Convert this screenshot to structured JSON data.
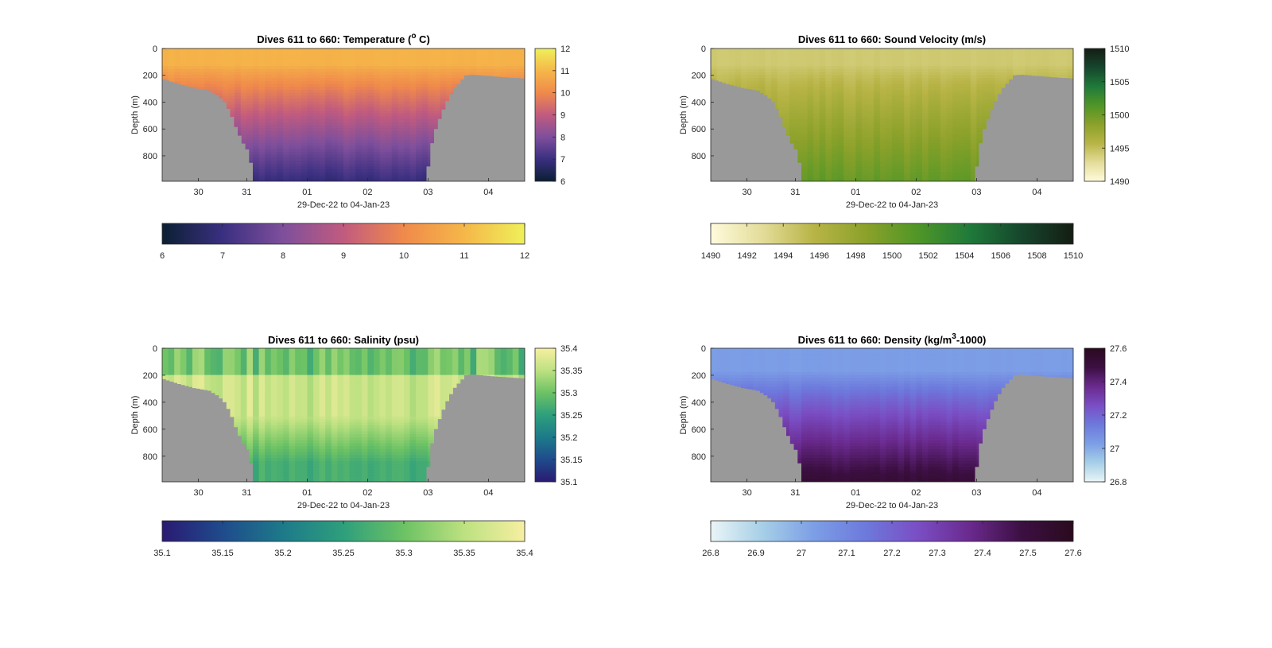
{
  "chart_data": [
    {
      "type": "heatmap",
      "title": "Dives 611 to 660: Temperature (",
      "title_super": "o",
      "title_tail": " C)",
      "xlabel": "29-Dec-22 to 04-Jan-23",
      "ylabel": "Depth (m)",
      "x_ticks": [
        "30",
        "31",
        "01",
        "02",
        "03",
        "04"
      ],
      "y_ticks": [
        "0",
        "200",
        "400",
        "600",
        "800"
      ],
      "ylim": [
        0,
        990
      ],
      "xlim_days": [
        0.0,
        6.0
      ],
      "side_colorbar_ticks": [
        "6",
        "7",
        "8",
        "9",
        "10",
        "11",
        "12"
      ],
      "bottom_colorbar_ticks": [
        "6",
        "7",
        "8",
        "9",
        "10",
        "11",
        "12"
      ],
      "clim": [
        6,
        12
      ],
      "colormap": [
        "#0b1f33",
        "#3a2f80",
        "#7e4f9c",
        "#c15b7f",
        "#f08a4b",
        "#f5b749",
        "#eff05a"
      ],
      "surface_value": 10.9,
      "deep_value": 6.9,
      "surface_layer_depth": 120,
      "bathymetry_color": "#999999"
    },
    {
      "type": "heatmap",
      "title": "Dives 611 to 660: Sound Velocity (m/s)",
      "xlabel": "29-Dec-22 to 04-Jan-23",
      "ylabel": "Depth (m)",
      "x_ticks": [
        "30",
        "31",
        "01",
        "02",
        "03",
        "04"
      ],
      "y_ticks": [
        "0",
        "200",
        "400",
        "600",
        "800"
      ],
      "ylim": [
        0,
        990
      ],
      "xlim_days": [
        0.0,
        6.0
      ],
      "side_colorbar_ticks": [
        "1490",
        "1495",
        "1500",
        "1505",
        "1510"
      ],
      "bottom_colorbar_ticks": [
        "1490",
        "1492",
        "1494",
        "1496",
        "1498",
        "1500",
        "1502",
        "1504",
        "1506",
        "1508",
        "1510"
      ],
      "clim": [
        1490,
        1510
      ],
      "colormap": [
        "#fffbdc",
        "#e3dc99",
        "#b8b446",
        "#8ba12a",
        "#4f9627",
        "#1f7a3a",
        "#16462c",
        "#141d13"
      ],
      "surface_value": 1494.2,
      "deep_value": 1500.4,
      "surface_layer_depth": 120,
      "bathymetry_color": "#999999"
    },
    {
      "type": "heatmap",
      "title": "Dives 611 to 660: Salinity (psu)",
      "xlabel": "29-Dec-22 to 04-Jan-23",
      "ylabel": "Depth (m)",
      "x_ticks": [
        "30",
        "31",
        "01",
        "02",
        "03",
        "04"
      ],
      "y_ticks": [
        "0",
        "200",
        "400",
        "600",
        "800"
      ],
      "ylim": [
        0,
        990
      ],
      "xlim_days": [
        0.0,
        6.0
      ],
      "side_colorbar_ticks": [
        "35.1",
        "35.15",
        "35.2",
        "35.25",
        "35.3",
        "35.35",
        "35.4"
      ],
      "bottom_colorbar_ticks": [
        "35.1",
        "35.15",
        "35.2",
        "35.25",
        "35.3",
        "35.35",
        "35.4"
      ],
      "clim": [
        35.1,
        35.4
      ],
      "colormap": [
        "#2a1a72",
        "#1f4b8c",
        "#1d7a8a",
        "#2e9f7c",
        "#6cc264",
        "#bde181",
        "#f7efa1"
      ],
      "surface_value": 35.3,
      "mid_value": 35.36,
      "deep_value": 35.27,
      "bathymetry_color": "#999999"
    },
    {
      "type": "heatmap",
      "title": "Dives 611 to 660: Density (kg/m",
      "title_super": "3",
      "title_tail": "-1000)",
      "xlabel": "29-Dec-22 to 04-Jan-23",
      "ylabel": "Depth (m)",
      "x_ticks": [
        "30",
        "31",
        "01",
        "02",
        "03",
        "04"
      ],
      "y_ticks": [
        "0",
        "200",
        "400",
        "600",
        "800"
      ],
      "ylim": [
        0,
        990
      ],
      "xlim_days": [
        0.0,
        6.0
      ],
      "side_colorbar_ticks": [
        "26.8",
        "27",
        "27.2",
        "27.4",
        "27.6"
      ],
      "bottom_colorbar_ticks": [
        "26.8",
        "26.9",
        "27",
        "27.1",
        "27.2",
        "27.3",
        "27.4",
        "27.5",
        "27.6"
      ],
      "clim": [
        26.8,
        27.6
      ],
      "colormap": [
        "#eaf5f7",
        "#a6cfe7",
        "#7c9ee6",
        "#6d79dc",
        "#7a4ec4",
        "#6a2a8e",
        "#3c0f42",
        "#2a0a1e"
      ],
      "surface_value": 27.03,
      "deep_value": 27.52,
      "surface_layer_depth": 170,
      "bathymetry_color": "#999999"
    }
  ],
  "bathymetry": {
    "sample_days": [
      0.0,
      0.25,
      0.5,
      0.75,
      0.9,
      1.0,
      1.1,
      1.2,
      1.3,
      1.4,
      1.5,
      1.95,
      2.0,
      4.35,
      4.4,
      4.5,
      4.6,
      4.7,
      4.8,
      4.9,
      5.0,
      5.1,
      5.25,
      5.5,
      6.0
    ],
    "depth_m": [
      230,
      265,
      295,
      315,
      355,
      400,
      480,
      600,
      700,
      770,
      990,
      990,
      990,
      990,
      770,
      600,
      480,
      380,
      300,
      250,
      200,
      195,
      200,
      210,
      225
    ]
  }
}
